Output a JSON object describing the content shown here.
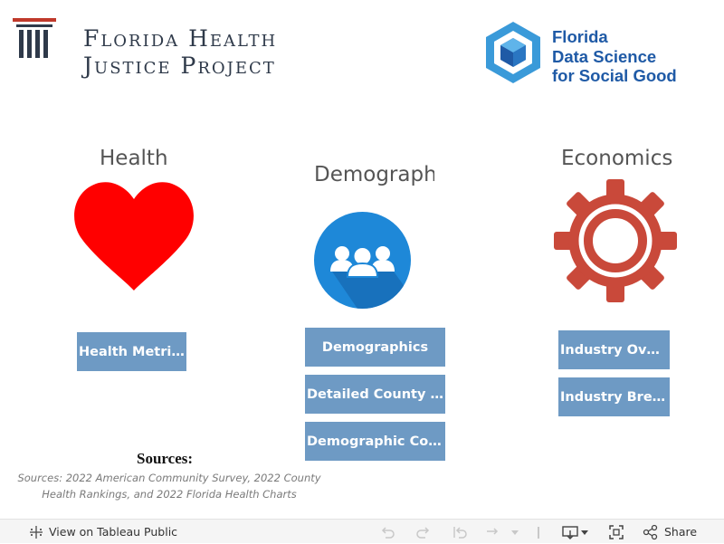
{
  "header": {
    "fhjp_logo": {
      "line1": "Florida Health",
      "line2": "Justice Project",
      "pillar_color": "#2f3a4a",
      "roof_color": "#c0392b"
    },
    "fdsg_logo": {
      "line1": "Florida",
      "line2": "Data Science",
      "line3": "for Social Good",
      "text_color": "#1f5aa6",
      "hex_color": "#3a9ad9"
    }
  },
  "sections": {
    "health": {
      "title": "Health",
      "icon": "heart-icon",
      "icon_color": "#ff0000",
      "buttons": [
        "Health Metrics"
      ]
    },
    "demographics": {
      "title": "Demographics",
      "icon": "people-group-icon",
      "icon_color": "#1e88d8",
      "buttons": [
        "Demographics",
        "Detailed County Metrics",
        "Demographic Correlations"
      ]
    },
    "economics": {
      "title": "Economics",
      "icon": "gear-icon",
      "icon_color": "#c9493a",
      "buttons": [
        "Industry Overview",
        "Industry Breakdown"
      ]
    }
  },
  "sources": {
    "heading": "Sources:",
    "text": "Sources: 2022 American Community Survey, 2022 County Health Rankings, and 2022 Florida Health Charts"
  },
  "toolbar": {
    "view_public_label": "View on Tableau Public",
    "share_label": "Share"
  },
  "colors": {
    "button_bg": "#6e9ac4",
    "button_text": "#ffffff",
    "toolbar_bg": "#f5f5f5"
  }
}
